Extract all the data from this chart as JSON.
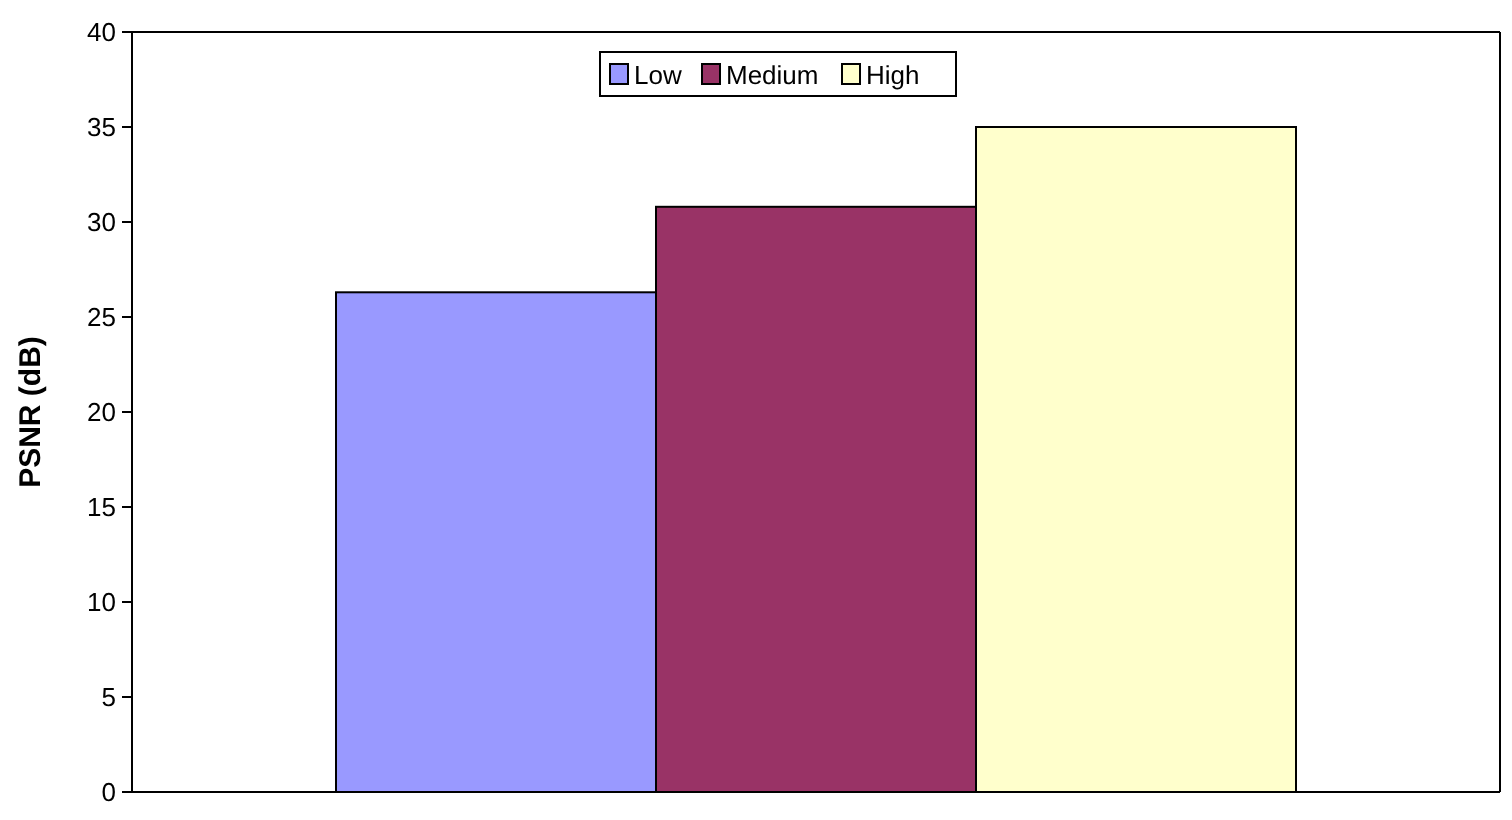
{
  "chart_data": {
    "type": "bar",
    "ylabel": "PSNR (dB)",
    "categories": [
      null
    ],
    "series": [
      {
        "name": "Low",
        "color": "#9999ff",
        "values": [
          26.3
        ]
      },
      {
        "name": "Medium",
        "color": "#993366",
        "values": [
          30.8
        ]
      },
      {
        "name": "High",
        "color": "#ffffcc",
        "values": [
          35.0
        ]
      }
    ],
    "ylim": [
      0,
      40
    ],
    "yticks": [
      0,
      5,
      10,
      15,
      20,
      25,
      30,
      35,
      40
    ],
    "grid": false,
    "legend": "top"
  }
}
